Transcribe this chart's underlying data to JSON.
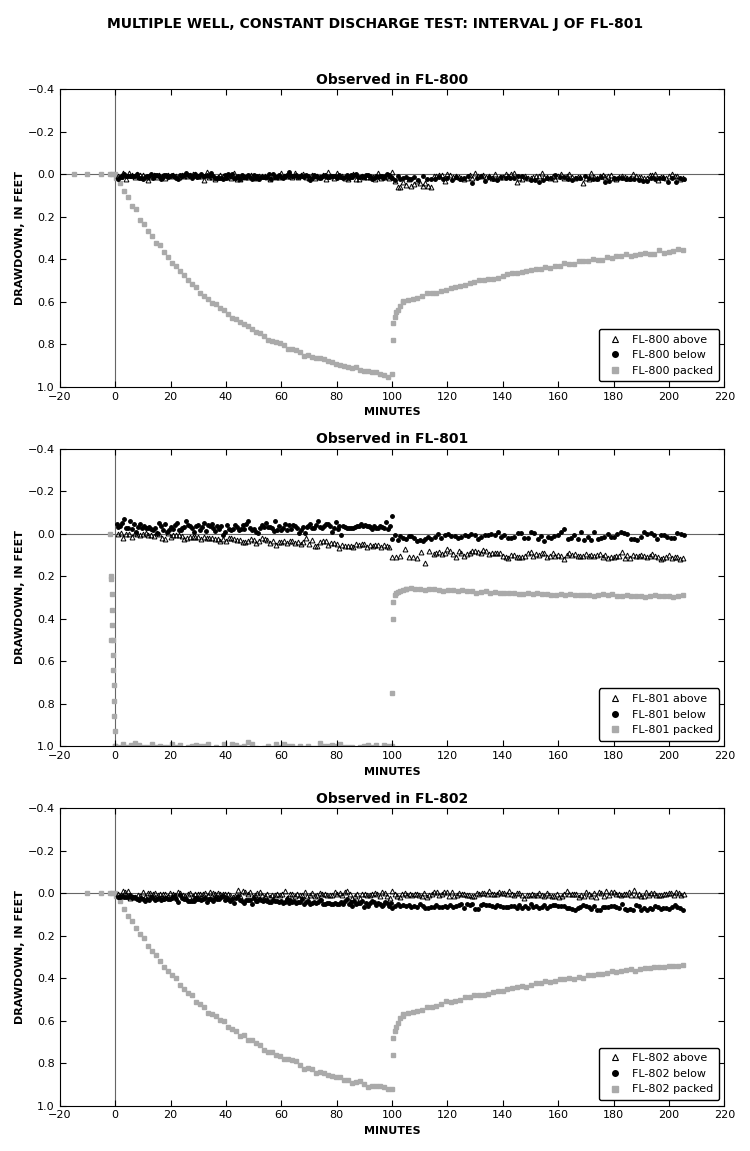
{
  "title": "MULTIPLE WELL, CONSTANT DISCHARGE TEST: INTERVAL J OF FL-801",
  "subplots": [
    {
      "title": "Observed in FL-800",
      "xlabel": "MINUTES",
      "ylabel": "DRAWDOWN, IN FEET",
      "xlim": [
        -20,
        220
      ],
      "ylim": [
        1.0,
        -0.4
      ],
      "xticks": [
        -20,
        0,
        20,
        40,
        60,
        80,
        100,
        120,
        140,
        160,
        180,
        200,
        220
      ],
      "yticks": [
        -0.4,
        -0.2,
        0.0,
        0.2,
        0.4,
        0.6,
        0.8,
        1.0
      ],
      "legend_labels": [
        "FL-800 above",
        "FL-800 below",
        "FL-800 packed"
      ]
    },
    {
      "title": "Observed in FL-801",
      "xlabel": "MINUTES",
      "ylabel": "DRAWDOWN, IN FEET",
      "xlim": [
        -20,
        220
      ],
      "ylim": [
        1.0,
        -0.4
      ],
      "xticks": [
        -20,
        0,
        20,
        40,
        60,
        80,
        100,
        120,
        140,
        160,
        180,
        200,
        220
      ],
      "yticks": [
        -0.4,
        -0.2,
        0.0,
        0.2,
        0.4,
        0.6,
        0.8,
        1.0
      ],
      "legend_labels": [
        "FL-801 above",
        "FL-801 below",
        "FL-801 packed"
      ]
    },
    {
      "title": "Observed in FL-802",
      "xlabel": "MINUTES",
      "ylabel": "DRAWDOWN, IN FEET",
      "xlim": [
        -20,
        220
      ],
      "ylim": [
        1.0,
        -0.4
      ],
      "xticks": [
        -20,
        0,
        20,
        40,
        60,
        80,
        100,
        120,
        140,
        160,
        180,
        200,
        220
      ],
      "yticks": [
        -0.4,
        -0.2,
        0.0,
        0.2,
        0.4,
        0.6,
        0.8,
        1.0
      ],
      "legend_labels": [
        "FL-802 above",
        "FL-802 below",
        "FL-802 packed"
      ]
    }
  ],
  "background_color": "#ffffff",
  "title_fontsize": 10,
  "subtitle_fontsize": 10,
  "axis_label_fontsize": 8,
  "tick_fontsize": 8,
  "legend_fontsize": 8,
  "packed_color": "#aaaaaa",
  "above_color": "#000000",
  "below_color": "#000000"
}
